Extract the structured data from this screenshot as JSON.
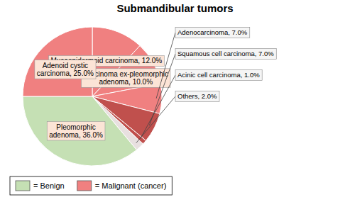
{
  "chart_data": {
    "type": "pie",
    "title": "Submandibular tumors",
    "values": [
      12,
      10,
      7,
      7,
      1,
      2,
      36,
      25
    ],
    "value_labels": [
      "Mucoepidermoid carcinoma, 12.0%",
      "Carcinoma ex-pleomorphic\nadenoma, 10.0%",
      "Adenocarcinoma, 7.0%",
      "Squamous cell carcinoma, 7.0%",
      "Acinic cell carcinoma, 1.0%",
      "Others, 2.0%",
      "Pleomorphic\nadenoma, 36.0%",
      "Adenoid cystic\ncarcinoma, 25.0%"
    ],
    "colors": [
      "#f08080",
      "#f08080",
      "#f08080",
      "#c0504d",
      "#c0504d",
      "#e8e0e0",
      "#c5e0b4",
      "#f08080"
    ],
    "legend": "bottom",
    "legend_entries": [
      {
        "name": "= Benign",
        "color": "#c5e0b4"
      },
      {
        "name": "= Malignant (cancer)",
        "color": "#f08080"
      }
    ]
  }
}
